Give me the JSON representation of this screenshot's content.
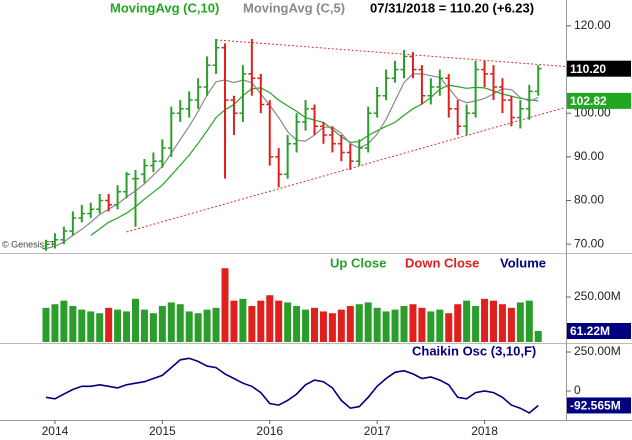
{
  "chart_data": [
    {
      "type": "ohlc",
      "title": "07/31/2018 = 110.20 (+6.23)",
      "watermark": "© GenesisFT",
      "up_color": "#2a9d2a",
      "down_color": "#e0201c",
      "ohlc": {
        "open": [
          69,
          70,
          71,
          73,
          76,
          77,
          78,
          80,
          79,
          82,
          85,
          86,
          88,
          89,
          92,
          100,
          101,
          103,
          106,
          111,
          115,
          103,
          100,
          109,
          108,
          102,
          90,
          86,
          93,
          98,
          101,
          97,
          95,
          93,
          91,
          89,
          92,
          100,
          104,
          108,
          110,
          113,
          110,
          104,
          106,
          108,
          101,
          97,
          100,
          110,
          109,
          106,
          103,
          99,
          101,
          105
        ],
        "high": [
          71,
          72.5,
          74,
          77.5,
          79,
          79.5,
          81.5,
          81.5,
          83.5,
          86.5,
          87,
          89.5,
          91,
          94,
          101.5,
          103,
          105,
          108,
          113,
          117,
          116,
          104,
          111,
          117,
          109,
          103,
          92,
          95,
          100,
          103,
          102,
          98,
          97,
          95,
          93,
          94,
          101.5,
          106,
          110,
          112,
          114.5,
          114,
          111,
          108,
          110,
          109,
          103,
          102,
          112,
          112,
          111,
          108,
          104,
          103,
          106.5,
          111
        ],
        "low": [
          68.5,
          69,
          70,
          72,
          75,
          76,
          77,
          77.5,
          78,
          80.5,
          74,
          84,
          86.5,
          87.5,
          90,
          98,
          99,
          101,
          104,
          109,
          85,
          95,
          98,
          104,
          100,
          88,
          83,
          85,
          91,
          96,
          95,
          93,
          91,
          89,
          87,
          88,
          91,
          99,
          103,
          107,
          108,
          108,
          102,
          102,
          104,
          99,
          95,
          95,
          99,
          106,
          103,
          100,
          97,
          96.5,
          98.5,
          104
        ],
        "close": [
          70,
          71,
          73,
          76,
          77,
          78,
          80,
          79,
          82,
          86,
          85,
          88,
          89,
          92,
          100,
          101,
          103,
          106,
          111,
          115,
          103,
          100,
          109,
          108,
          102,
          90,
          86,
          93,
          98,
          101,
          97,
          95,
          93,
          91,
          89,
          92,
          100,
          104,
          108,
          110,
          113,
          110,
          104,
          106,
          108,
          101,
          97,
          100,
          110,
          109,
          106,
          103,
          99,
          101,
          105,
          110.2
        ],
        "last_label": "110.20"
      },
      "series": [
        {
          "name": "MovingAvg (C,10)",
          "color": "#22a722",
          "values": [
            null,
            null,
            null,
            null,
            null,
            72,
            73.5,
            75,
            76,
            77.1,
            78.6,
            80.3,
            81.9,
            83.5,
            85.8,
            88.1,
            90.4,
            93.1,
            96,
            99,
            100.8,
            102,
            104,
            105.6,
            105.8,
            104.7,
            103,
            101.7,
            100.4,
            99,
            98.4,
            97.9,
            96.3,
            94.6,
            93.3,
            93.5,
            94.9,
            96,
            97,
            97.9,
            99.5,
            101,
            102.1,
            103.6,
            105.5,
            106.4,
            106.1,
            105.7,
            105.9,
            105.8,
            105.1,
            104.4,
            103.9,
            103.4,
            103.1,
            102.82
          ]
        },
        {
          "name": "MovingAvg (C,5)",
          "color": "#8a8a8a",
          "values": [
            69,
            69.5,
            70.5,
            72,
            73.4,
            75,
            76.8,
            78,
            79.2,
            80.8,
            82.2,
            83.8,
            85.8,
            87.8,
            90.8,
            94,
            97,
            100.4,
            104.2,
            107.2,
            107.6,
            107,
            107.6,
            107,
            104.4,
            101.8,
            99,
            95.8,
            93.8,
            93.6,
            95,
            96.8,
            96.8,
            95.4,
            93,
            92,
            93,
            95.2,
            98.6,
            102.8,
            107,
            109,
            109,
            108.6,
            108.2,
            105.8,
            103.2,
            102.4,
            102.8,
            103.4,
            104.4,
            105.6,
            105.4,
            103.6,
            102.8,
            103.6
          ]
        }
      ],
      "trendlines": [
        {
          "color": "#e03030",
          "x": [
            19,
            58
          ],
          "y": [
            116.8,
            110.7
          ]
        },
        {
          "color": "#e03030",
          "x": [
            9,
            58
          ],
          "y": [
            72.8,
            101.3
          ]
        }
      ],
      "ylim": [
        68.2,
        124.1
      ],
      "yticks": [
        {
          "value": 70,
          "label": "70.00"
        },
        {
          "value": 80,
          "label": "80.00"
        },
        {
          "value": 90,
          "label": "90.00"
        },
        {
          "value": 100,
          "label": "100.00"
        },
        {
          "value": 110,
          "label": "110.00"
        },
        {
          "value": 120,
          "label": "120.00"
        }
      ]
    },
    {
      "type": "bar",
      "legend_items": [
        {
          "name": "Up Close",
          "color": "#2a9d2a"
        },
        {
          "name": "Down Close",
          "color": "#e0201c"
        }
      ],
      "series": [
        {
          "name": "Volume",
          "color": "#000080",
          "values": [
            190,
            210,
            230,
            200,
            180,
            170,
            160,
            190,
            180,
            170,
            240,
            180,
            160,
            200,
            220,
            210,
            170,
            160,
            180,
            190,
            410,
            230,
            240,
            200,
            230,
            260,
            230,
            220,
            200,
            180,
            190,
            170,
            160,
            180,
            200,
            210,
            220,
            190,
            170,
            180,
            200,
            210,
            190,
            170,
            180,
            160,
            210,
            230,
            200,
            240,
            230,
            210,
            190,
            220,
            230,
            61.22
          ]
        }
      ],
      "last_label": "61.22M",
      "ylim": [
        0,
        467
      ],
      "yticks": [
        {
          "value": 250,
          "label": "250.00M"
        }
      ]
    },
    {
      "type": "line",
      "series": [
        {
          "name": "Chaikin Osc (3,10,F)",
          "color": "#000080",
          "values": [
            -40,
            -50,
            -20,
            10,
            30,
            30,
            40,
            30,
            20,
            40,
            50,
            60,
            80,
            100,
            150,
            200,
            210,
            190,
            160,
            150,
            110,
            80,
            50,
            30,
            -10,
            -80,
            -90,
            -60,
            -20,
            40,
            70,
            60,
            20,
            -60,
            -110,
            -100,
            -40,
            30,
            80,
            120,
            130,
            110,
            80,
            90,
            70,
            40,
            -40,
            -50,
            -10,
            0,
            -10,
            -40,
            -90,
            -110,
            -140,
            -92.565
          ]
        }
      ],
      "last_label": "-92.565M",
      "ylim": [
        -173,
        295
      ],
      "yticks": [
        {
          "value": 250,
          "label": "250.00M"
        },
        0
      ],
      "categories": [
        null,
        "2014",
        null,
        null,
        null,
        null,
        null,
        null,
        null,
        null,
        null,
        null,
        null,
        "2015",
        null,
        null,
        null,
        null,
        null,
        null,
        null,
        null,
        null,
        null,
        null,
        "2016",
        null,
        null,
        null,
        null,
        null,
        null,
        null,
        null,
        null,
        null,
        null,
        "2017",
        null,
        null,
        null,
        null,
        null,
        null,
        null,
        null,
        null,
        null,
        null,
        "2018",
        null,
        null,
        null,
        null,
        null,
        null
      ]
    }
  ]
}
